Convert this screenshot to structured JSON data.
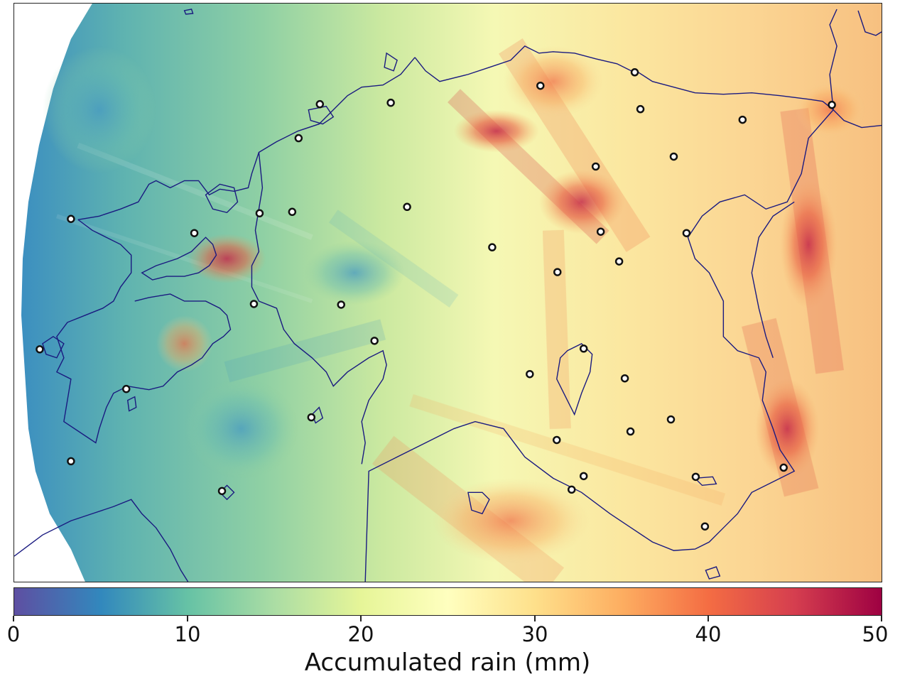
{
  "colorbar": {
    "label": "Accumulated rain (mm)",
    "min": 0,
    "max": 50,
    "ticks": [
      "0",
      "10",
      "20",
      "30",
      "40",
      "50"
    ],
    "colormap": "Spectral_r",
    "colors": [
      "#5e4fa2",
      "#3288bd",
      "#66c2a5",
      "#abdda4",
      "#e6f598",
      "#ffffbf",
      "#fee08b",
      "#fdae61",
      "#f46d43",
      "#d53e4f",
      "#9e0142"
    ]
  },
  "map": {
    "coastline_color": "#1a1a80",
    "station_marker": "open-white-circle"
  }
}
